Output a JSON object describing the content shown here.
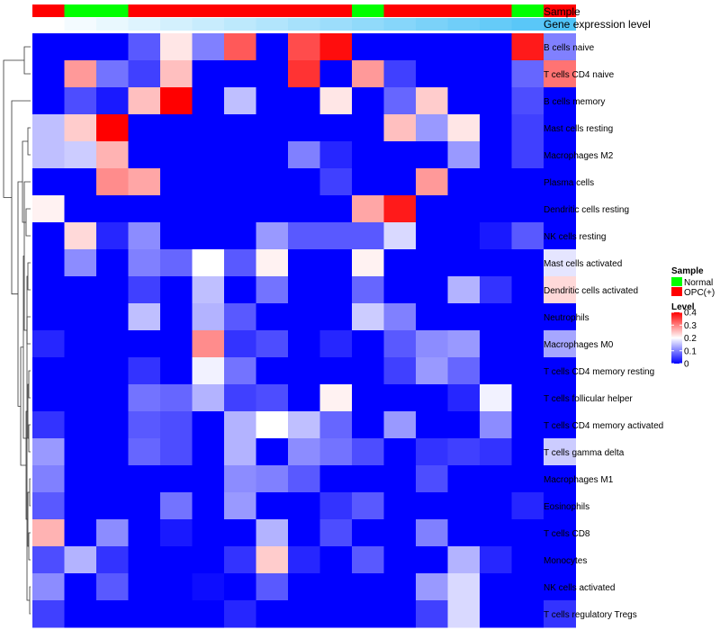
{
  "chart_data": {
    "type": "heatmap",
    "title": "",
    "annotation_labels": {
      "sample": "Sample",
      "gene_expression": "Gene expression level"
    },
    "sample_groups": [
      "OPC(+)",
      "Normal",
      "Normal",
      "OPC(+)",
      "OPC(+)",
      "OPC(+)",
      "OPC(+)",
      "OPC(+)",
      "OPC(+)",
      "OPC(+)",
      "Normal",
      "OPC(+)",
      "OPC(+)",
      "OPC(+)",
      "OPC(+)",
      "Normal",
      "OPC(+)"
    ],
    "gene_expression_level": [
      0.0,
      0.02,
      0.04,
      0.06,
      0.08,
      0.1,
      0.12,
      0.14,
      0.16,
      0.18,
      0.2,
      0.22,
      0.24,
      0.26,
      0.28,
      0.3,
      0.32
    ],
    "rows": [
      "B cells naive",
      "T cells CD4 naive",
      "B cells memory",
      "Mast cells resting",
      "Macrophages M2",
      "Plasma cells",
      "Dendritic cells resting",
      "NK cells resting",
      "Mast cells activated",
      "Dendritic cells activated",
      "Neutrophils",
      "Macrophages M0",
      "T cells CD4 memory resting",
      "T cells follicular helper",
      "T cells CD4 memory activated",
      "T cells gamma delta",
      "Macrophages M1",
      "Eosinophils",
      "T cells CD8",
      "Monocytes",
      "NK cells activated",
      "T cells regulatory  Tregs"
    ],
    "values": [
      [
        0.0,
        0.0,
        0.0,
        0.07,
        0.22,
        0.1,
        0.33,
        0.0,
        0.34,
        0.39,
        0.0,
        0.0,
        0.0,
        0.0,
        0.0,
        0.38,
        0.1
      ],
      [
        0.0,
        0.28,
        0.09,
        0.05,
        0.25,
        0.0,
        0.0,
        0.0,
        0.36,
        0.0,
        0.28,
        0.05,
        0.0,
        0.0,
        0.0,
        0.08,
        0.31
      ],
      [
        0.0,
        0.06,
        0.02,
        0.25,
        0.4,
        0.0,
        0.15,
        0.0,
        0.0,
        0.22,
        0.0,
        0.08,
        0.24,
        0.0,
        0.0,
        0.06,
        0.0
      ],
      [
        0.15,
        0.24,
        0.4,
        0.0,
        0.0,
        0.0,
        0.0,
        0.0,
        0.0,
        0.0,
        0.0,
        0.25,
        0.12,
        0.22,
        0.0,
        0.05,
        0.0
      ],
      [
        0.15,
        0.16,
        0.26,
        0.0,
        0.0,
        0.0,
        0.0,
        0.0,
        0.1,
        0.03,
        0.0,
        0.0,
        0.0,
        0.12,
        0.0,
        0.05,
        0.0
      ],
      [
        0.0,
        0.0,
        0.29,
        0.27,
        0.0,
        0.0,
        0.0,
        0.0,
        0.0,
        0.05,
        0.0,
        0.0,
        0.28,
        0.0,
        0.0,
        0.0,
        0.0
      ],
      [
        0.21,
        0.0,
        0.0,
        0.0,
        0.0,
        0.0,
        0.0,
        0.0,
        0.0,
        0.0,
        0.27,
        0.38,
        0.0,
        0.0,
        0.0,
        0.0,
        0.0
      ],
      [
        0.0,
        0.23,
        0.03,
        0.11,
        0.0,
        0.0,
        0.0,
        0.12,
        0.07,
        0.07,
        0.07,
        0.17,
        0.0,
        0.0,
        0.02,
        0.07,
        0.0
      ],
      [
        0.0,
        0.11,
        0.0,
        0.1,
        0.08,
        0.2,
        0.07,
        0.21,
        0.0,
        0.0,
        0.21,
        0.0,
        0.0,
        0.0,
        0.0,
        0.0,
        0.18
      ],
      [
        0.0,
        0.0,
        0.0,
        0.05,
        0.0,
        0.15,
        0.0,
        0.09,
        0.0,
        0.0,
        0.08,
        0.0,
        0.0,
        0.14,
        0.04,
        0.0,
        0.23
      ],
      [
        0.0,
        0.0,
        0.0,
        0.15,
        0.0,
        0.14,
        0.07,
        0.0,
        0.0,
        0.0,
        0.16,
        0.1,
        0.0,
        0.0,
        0.0,
        0.0,
        0.0
      ],
      [
        0.03,
        0.0,
        0.0,
        0.0,
        0.0,
        0.29,
        0.04,
        0.06,
        0.0,
        0.03,
        0.0,
        0.07,
        0.11,
        0.12,
        0.0,
        0.0,
        0.13
      ],
      [
        0.0,
        0.0,
        0.0,
        0.04,
        0.0,
        0.19,
        0.09,
        0.0,
        0.0,
        0.0,
        0.0,
        0.05,
        0.12,
        0.08,
        0.0,
        0.0,
        0.0
      ],
      [
        0.0,
        0.0,
        0.0,
        0.09,
        0.08,
        0.14,
        0.05,
        0.06,
        0.0,
        0.21,
        0.0,
        0.0,
        0.0,
        0.03,
        0.19,
        0.0,
        0.0
      ],
      [
        0.04,
        0.0,
        0.0,
        0.07,
        0.06,
        0.0,
        0.14,
        0.2,
        0.15,
        0.08,
        0.0,
        0.12,
        0.0,
        0.0,
        0.11,
        0.0,
        0.0
      ],
      [
        0.12,
        0.0,
        0.0,
        0.08,
        0.06,
        0.0,
        0.14,
        0.0,
        0.11,
        0.09,
        0.06,
        0.0,
        0.04,
        0.05,
        0.04,
        0.0,
        0.16
      ],
      [
        0.1,
        0.0,
        0.0,
        0.0,
        0.0,
        0.0,
        0.11,
        0.1,
        0.07,
        0.0,
        0.0,
        0.0,
        0.06,
        0.0,
        0.0,
        0.0,
        0.0
      ],
      [
        0.07,
        0.0,
        0.0,
        0.0,
        0.09,
        0.0,
        0.12,
        0.0,
        0.0,
        0.04,
        0.07,
        0.0,
        0.0,
        0.0,
        0.0,
        0.03,
        0.0
      ],
      [
        0.26,
        0.0,
        0.11,
        0.0,
        0.02,
        0.0,
        0.0,
        0.14,
        0.0,
        0.06,
        0.0,
        0.0,
        0.1,
        0.0,
        0.0,
        0.0,
        0.0
      ],
      [
        0.06,
        0.14,
        0.04,
        0.0,
        0.0,
        0.0,
        0.04,
        0.24,
        0.03,
        0.0,
        0.07,
        0.0,
        0.0,
        0.14,
        0.03,
        0.0,
        0.0
      ],
      [
        0.11,
        0.0,
        0.07,
        0.0,
        0.0,
        0.01,
        0.0,
        0.07,
        0.0,
        0.0,
        0.0,
        0.0,
        0.12,
        0.17,
        0.0,
        0.0,
        0.0
      ],
      [
        0.05,
        0.0,
        0.0,
        0.0,
        0.0,
        0.0,
        0.03,
        0.0,
        0.0,
        0.0,
        0.0,
        0.0,
        0.05,
        0.17,
        0.0,
        0.0,
        0.04
      ]
    ],
    "legend": {
      "sample_title": "Sample",
      "sample_entries": [
        {
          "label": "Normal",
          "color": "#00ff00"
        },
        {
          "label": "OPC(+)",
          "color": "#ff0000"
        }
      ],
      "level_title": "Level",
      "level_ticks": [
        "0.4",
        "0.3",
        "0.2",
        "0.1",
        "0"
      ],
      "level_tick_values": [
        0.4,
        0.3,
        0.2,
        0.1,
        0
      ],
      "placement": "right"
    },
    "color_scale": {
      "low": "#0000ff",
      "mid": "#ffffff",
      "high": "#ff0000",
      "min": 0,
      "mid_value": 0.2,
      "max": 0.4
    },
    "annotation_scale": {
      "low": "#ffffff",
      "high": "#4fc3f7",
      "min": 0,
      "max": 0.32
    }
  }
}
